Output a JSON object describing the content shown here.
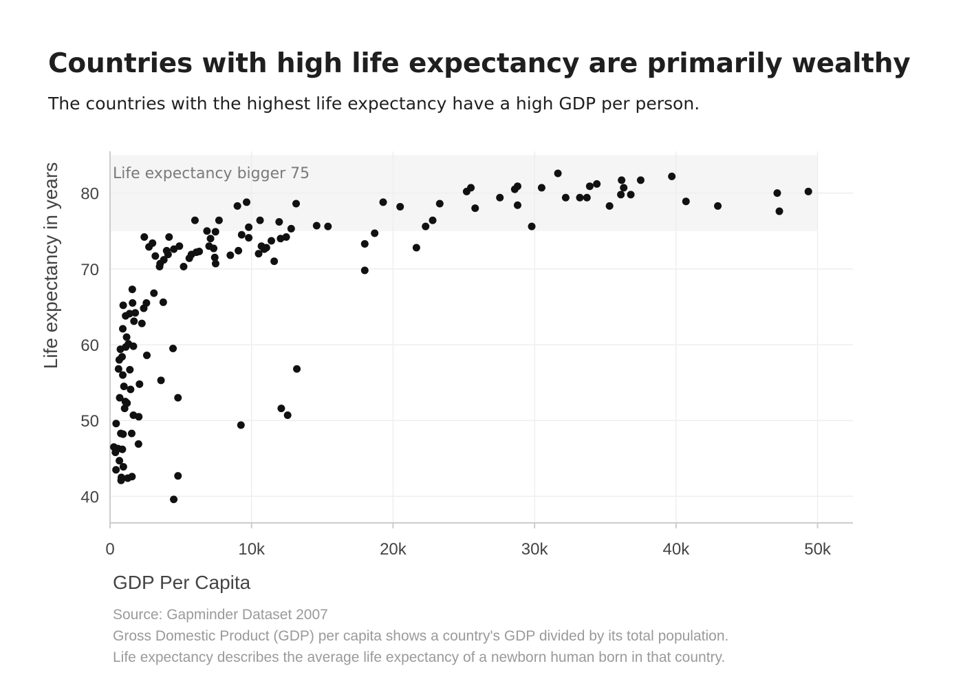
{
  "chart_data": {
    "type": "scatter",
    "title": "Countries with high life expectancy are primarily wealthy",
    "subtitle": "The countries with the highest life expectancy have a high GDP per person.",
    "xlabel": "GDP Per Capita",
    "ylabel": "Life expectancy in years",
    "xlim": [
      0,
      52500
    ],
    "ylim": [
      36.5,
      85.5
    ],
    "x_ticks": [
      {
        "value": 0,
        "label": "0"
      },
      {
        "value": 10000,
        "label": "10k"
      },
      {
        "value": 20000,
        "label": "20k"
      },
      {
        "value": 30000,
        "label": "30k"
      },
      {
        "value": 40000,
        "label": "40k"
      },
      {
        "value": 50000,
        "label": "50k"
      }
    ],
    "y_ticks": [
      {
        "value": 40,
        "label": "40"
      },
      {
        "value": 50,
        "label": "50"
      },
      {
        "value": 60,
        "label": "60"
      },
      {
        "value": 70,
        "label": "70"
      },
      {
        "value": 80,
        "label": "80"
      }
    ],
    "grid": true,
    "legend": "none",
    "highlight_band": {
      "y_from": 75,
      "y_to": 85,
      "x_from": 0,
      "x_to": 50000,
      "label": "Life expectancy bigger 75",
      "color": "#f5f5f5"
    },
    "point_color": "#111111",
    "points": [
      {
        "x": 270,
        "y": 46.5
      },
      {
        "x": 380,
        "y": 45.8
      },
      {
        "x": 420,
        "y": 43.5
      },
      {
        "x": 430,
        "y": 49.6
      },
      {
        "x": 560,
        "y": 46.3
      },
      {
        "x": 600,
        "y": 56.8
      },
      {
        "x": 650,
        "y": 58.0
      },
      {
        "x": 660,
        "y": 44.7
      },
      {
        "x": 680,
        "y": 53.0
      },
      {
        "x": 730,
        "y": 59.4
      },
      {
        "x": 760,
        "y": 48.3
      },
      {
        "x": 780,
        "y": 42.1
      },
      {
        "x": 800,
        "y": 42.5
      },
      {
        "x": 850,
        "y": 58.4
      },
      {
        "x": 870,
        "y": 46.2
      },
      {
        "x": 900,
        "y": 56.0
      },
      {
        "x": 900,
        "y": 62.1
      },
      {
        "x": 920,
        "y": 48.2
      },
      {
        "x": 930,
        "y": 65.2
      },
      {
        "x": 940,
        "y": 43.9
      },
      {
        "x": 980,
        "y": 54.5
      },
      {
        "x": 1030,
        "y": 51.6
      },
      {
        "x": 1080,
        "y": 52.5
      },
      {
        "x": 1100,
        "y": 63.8
      },
      {
        "x": 1110,
        "y": 59.7
      },
      {
        "x": 1170,
        "y": 61.0
      },
      {
        "x": 1200,
        "y": 52.3
      },
      {
        "x": 1250,
        "y": 42.4
      },
      {
        "x": 1300,
        "y": 60.1
      },
      {
        "x": 1380,
        "y": 64.1
      },
      {
        "x": 1400,
        "y": 56.7
      },
      {
        "x": 1450,
        "y": 54.1
      },
      {
        "x": 1530,
        "y": 48.3
      },
      {
        "x": 1550,
        "y": 42.6
      },
      {
        "x": 1570,
        "y": 67.3
      },
      {
        "x": 1590,
        "y": 65.5
      },
      {
        "x": 1650,
        "y": 59.8
      },
      {
        "x": 1650,
        "y": 50.7
      },
      {
        "x": 1690,
        "y": 63.1
      },
      {
        "x": 1780,
        "y": 64.2
      },
      {
        "x": 2010,
        "y": 46.9
      },
      {
        "x": 2030,
        "y": 50.5
      },
      {
        "x": 2080,
        "y": 54.8
      },
      {
        "x": 2250,
        "y": 62.8
      },
      {
        "x": 2380,
        "y": 64.8
      },
      {
        "x": 2420,
        "y": 74.2
      },
      {
        "x": 2570,
        "y": 65.5
      },
      {
        "x": 2600,
        "y": 58.6
      },
      {
        "x": 2750,
        "y": 72.9
      },
      {
        "x": 3000,
        "y": 73.4
      },
      {
        "x": 3100,
        "y": 66.8
      },
      {
        "x": 3200,
        "y": 71.7
      },
      {
        "x": 3500,
        "y": 70.3
      },
      {
        "x": 3540,
        "y": 70.7
      },
      {
        "x": 3600,
        "y": 55.3
      },
      {
        "x": 3760,
        "y": 65.6
      },
      {
        "x": 3800,
        "y": 71.2
      },
      {
        "x": 4000,
        "y": 72.4
      },
      {
        "x": 4100,
        "y": 71.9
      },
      {
        "x": 4170,
        "y": 74.2
      },
      {
        "x": 4450,
        "y": 59.5
      },
      {
        "x": 4500,
        "y": 39.6
      },
      {
        "x": 4510,
        "y": 72.6
      },
      {
        "x": 4800,
        "y": 53.0
      },
      {
        "x": 4800,
        "y": 42.7
      },
      {
        "x": 4900,
        "y": 73.0
      },
      {
        "x": 5200,
        "y": 70.3
      },
      {
        "x": 5600,
        "y": 71.4
      },
      {
        "x": 5750,
        "y": 71.9
      },
      {
        "x": 6000,
        "y": 76.4
      },
      {
        "x": 6100,
        "y": 72.2
      },
      {
        "x": 6300,
        "y": 72.3
      },
      {
        "x": 6850,
        "y": 75.0
      },
      {
        "x": 7000,
        "y": 73.0
      },
      {
        "x": 7100,
        "y": 74.0
      },
      {
        "x": 7320,
        "y": 72.7
      },
      {
        "x": 7400,
        "y": 71.5
      },
      {
        "x": 7450,
        "y": 74.9
      },
      {
        "x": 7460,
        "y": 70.7
      },
      {
        "x": 7700,
        "y": 76.4
      },
      {
        "x": 8500,
        "y": 71.8
      },
      {
        "x": 9000,
        "y": 78.3
      },
      {
        "x": 9070,
        "y": 72.4
      },
      {
        "x": 9250,
        "y": 49.4
      },
      {
        "x": 9300,
        "y": 74.5
      },
      {
        "x": 9650,
        "y": 78.8
      },
      {
        "x": 9800,
        "y": 74.1
      },
      {
        "x": 9800,
        "y": 75.5
      },
      {
        "x": 10500,
        "y": 72.0
      },
      {
        "x": 10600,
        "y": 76.4
      },
      {
        "x": 10700,
        "y": 73.0
      },
      {
        "x": 10900,
        "y": 72.6
      },
      {
        "x": 11050,
        "y": 72.8
      },
      {
        "x": 11400,
        "y": 73.7
      },
      {
        "x": 11600,
        "y": 71.0
      },
      {
        "x": 11950,
        "y": 76.2
      },
      {
        "x": 12050,
        "y": 74.0
      },
      {
        "x": 12100,
        "y": 51.6
      },
      {
        "x": 12450,
        "y": 74.2
      },
      {
        "x": 12550,
        "y": 50.7
      },
      {
        "x": 12800,
        "y": 75.3
      },
      {
        "x": 13150,
        "y": 78.6
      },
      {
        "x": 13200,
        "y": 56.8
      },
      {
        "x": 14600,
        "y": 75.7
      },
      {
        "x": 15400,
        "y": 75.6
      },
      {
        "x": 18000,
        "y": 73.3
      },
      {
        "x": 18000,
        "y": 69.8
      },
      {
        "x": 18700,
        "y": 74.7
      },
      {
        "x": 19300,
        "y": 78.8
      },
      {
        "x": 20500,
        "y": 78.2
      },
      {
        "x": 21650,
        "y": 72.8
      },
      {
        "x": 22300,
        "y": 75.6
      },
      {
        "x": 22800,
        "y": 76.4
      },
      {
        "x": 23300,
        "y": 78.6
      },
      {
        "x": 25200,
        "y": 80.2
      },
      {
        "x": 25500,
        "y": 80.7
      },
      {
        "x": 25800,
        "y": 78.0
      },
      {
        "x": 27550,
        "y": 79.4
      },
      {
        "x": 28600,
        "y": 80.5
      },
      {
        "x": 28800,
        "y": 80.9
      },
      {
        "x": 28800,
        "y": 78.4
      },
      {
        "x": 29800,
        "y": 75.6
      },
      {
        "x": 30500,
        "y": 80.7
      },
      {
        "x": 31650,
        "y": 82.6
      },
      {
        "x": 32200,
        "y": 79.4
      },
      {
        "x": 33200,
        "y": 79.4
      },
      {
        "x": 33700,
        "y": 79.4
      },
      {
        "x": 33900,
        "y": 80.9
      },
      {
        "x": 34400,
        "y": 81.2
      },
      {
        "x": 35300,
        "y": 78.3
      },
      {
        "x": 36100,
        "y": 79.8
      },
      {
        "x": 36150,
        "y": 81.7
      },
      {
        "x": 36300,
        "y": 80.7
      },
      {
        "x": 36800,
        "y": 79.8
      },
      {
        "x": 37500,
        "y": 81.7
      },
      {
        "x": 39700,
        "y": 82.2
      },
      {
        "x": 40700,
        "y": 78.9
      },
      {
        "x": 42950,
        "y": 78.3
      },
      {
        "x": 47150,
        "y": 80.0
      },
      {
        "x": 47300,
        "y": 77.6
      },
      {
        "x": 49350,
        "y": 80.2
      }
    ]
  },
  "footnotes": {
    "source": "Source: Gapminder Dataset 2007",
    "gdp_note": "Gross Domestic Product (GDP) per capita shows a country's GDP divided by its total population.",
    "life_note": "Life expectancy describes the average life expectancy of a newborn human born in that country."
  }
}
